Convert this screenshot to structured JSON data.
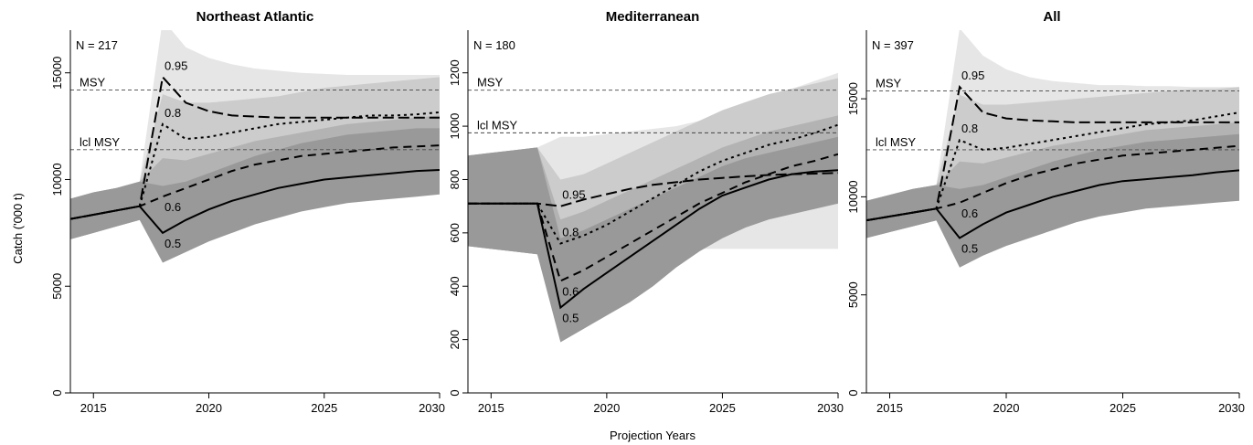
{
  "figure": {
    "shared_xlabel": "Projection Years",
    "ylabel": "Catch ('000 t)"
  },
  "chart_data": [
    {
      "type": "line",
      "title": "Northeast Atlantic",
      "n_label": "N = 217",
      "xlim": [
        2014,
        2030
      ],
      "ylim": [
        0,
        17000
      ],
      "xticks": [
        2015,
        2020,
        2025,
        2030
      ],
      "yticks": [
        0,
        5000,
        10000,
        15000
      ],
      "x": [
        2014,
        2015,
        2016,
        2017,
        2018,
        2019,
        2020,
        2021,
        2022,
        2023,
        2024,
        2025,
        2026,
        2027,
        2028,
        2029,
        2030
      ],
      "reference_lines": [
        {
          "label": "MSY",
          "value": 14200
        },
        {
          "label": "lcl MSY",
          "value": 11400
        }
      ],
      "bands": [
        {
          "level": "0.95",
          "color": "#e6e6e6",
          "lower": [
            7200,
            7500,
            7800,
            8100,
            8800,
            8900,
            9000,
            9100,
            9200,
            9300,
            9400,
            9500,
            9600,
            9700,
            9800,
            9900,
            10000
          ],
          "upper": [
            9100,
            9400,
            9600,
            9900,
            17500,
            16200,
            15700,
            15400,
            15200,
            15100,
            15000,
            14950,
            14900,
            14900,
            14900,
            14900,
            14900
          ]
        },
        {
          "level": "0.8",
          "color": "#cccccc",
          "lower": [
            7200,
            7500,
            7800,
            8100,
            8200,
            8400,
            8600,
            8800,
            9000,
            9200,
            9300,
            9400,
            9500,
            9600,
            9700,
            9800,
            9900
          ],
          "upper": [
            9100,
            9400,
            9600,
            9900,
            14000,
            13600,
            13600,
            13700,
            13800,
            13900,
            14100,
            14300,
            14400,
            14500,
            14600,
            14700,
            14800
          ]
        },
        {
          "level": "0.6",
          "color": "#b3b3b3",
          "lower": [
            7200,
            7500,
            7800,
            8100,
            7000,
            7300,
            7600,
            7900,
            8200,
            8400,
            8600,
            8800,
            9000,
            9100,
            9200,
            9300,
            9400
          ],
          "upper": [
            9100,
            9400,
            9600,
            9900,
            11000,
            10900,
            11200,
            11500,
            11800,
            12000,
            12200,
            12400,
            12600,
            12700,
            12800,
            12900,
            13000
          ]
        },
        {
          "level": "0.5",
          "color": "#999999",
          "lower": [
            7200,
            7500,
            7800,
            8100,
            6100,
            6600,
            7100,
            7500,
            7900,
            8200,
            8500,
            8700,
            8900,
            9000,
            9100,
            9200,
            9300
          ],
          "upper": [
            9100,
            9400,
            9600,
            9900,
            9700,
            9900,
            10300,
            10700,
            11100,
            11400,
            11700,
            11900,
            12100,
            12200,
            12300,
            12400,
            12400
          ]
        }
      ],
      "series": [
        {
          "name": "0.95",
          "dash": "12,5",
          "values": [
            8150,
            8350,
            8550,
            8750,
            14800,
            13600,
            13200,
            13000,
            12950,
            12900,
            12900,
            12900,
            12900,
            12900,
            12900,
            12900,
            12900
          ]
        },
        {
          "name": "0.8",
          "dash": "3,4",
          "values": [
            8150,
            8350,
            8550,
            8750,
            12600,
            11900,
            12000,
            12200,
            12400,
            12600,
            12700,
            12800,
            12900,
            13000,
            13000,
            13050,
            13150
          ]
        },
        {
          "name": "0.6",
          "dash": "9,6",
          "values": [
            8150,
            8350,
            8550,
            8750,
            9200,
            9600,
            10000,
            10400,
            10700,
            10900,
            11100,
            11200,
            11300,
            11400,
            11500,
            11550,
            11600
          ]
        },
        {
          "name": "0.5",
          "dash": "",
          "values": [
            8150,
            8350,
            8550,
            8750,
            7500,
            8100,
            8600,
            9000,
            9300,
            9600,
            9800,
            10000,
            10100,
            10200,
            10300,
            10400,
            10450
          ]
        }
      ]
    },
    {
      "type": "line",
      "title": "Mediterranean",
      "n_label": "N = 180",
      "xlim": [
        2014,
        2030
      ],
      "ylim": [
        0,
        1360
      ],
      "xticks": [
        2015,
        2020,
        2025,
        2030
      ],
      "yticks": [
        0,
        200,
        400,
        600,
        800,
        1000,
        1200
      ],
      "x": [
        2014,
        2015,
        2016,
        2017,
        2018,
        2019,
        2020,
        2021,
        2022,
        2023,
        2024,
        2025,
        2026,
        2027,
        2028,
        2029,
        2030
      ],
      "reference_lines": [
        {
          "label": "MSY",
          "value": 1135
        },
        {
          "label": "lcl MSY",
          "value": 975
        }
      ],
      "bands": [
        {
          "level": "0.95",
          "color": "#e6e6e6",
          "lower": [
            550,
            540,
            530,
            520,
            540,
            540,
            540,
            540,
            540,
            540,
            540,
            540,
            540,
            540,
            540,
            540,
            540
          ],
          "upper": [
            890,
            900,
            910,
            920,
            960,
            960,
            970,
            980,
            990,
            1000,
            1020,
            1050,
            1080,
            1110,
            1140,
            1170,
            1200
          ]
        },
        {
          "level": "0.8",
          "color": "#cccccc",
          "lower": [
            550,
            540,
            530,
            520,
            260,
            300,
            360,
            420,
            500,
            570,
            620,
            660,
            690,
            710,
            730,
            740,
            750
          ],
          "upper": [
            890,
            900,
            910,
            920,
            800,
            820,
            860,
            900,
            940,
            980,
            1020,
            1060,
            1090,
            1120,
            1140,
            1160,
            1180
          ]
        },
        {
          "level": "0.6",
          "color": "#b3b3b3",
          "lower": [
            550,
            540,
            530,
            520,
            240,
            280,
            330,
            390,
            450,
            510,
            560,
            600,
            640,
            670,
            690,
            710,
            720
          ],
          "upper": [
            890,
            900,
            910,
            920,
            650,
            680,
            720,
            760,
            800,
            840,
            880,
            920,
            950,
            980,
            1000,
            1020,
            1040
          ]
        },
        {
          "level": "0.5",
          "color": "#999999",
          "lower": [
            550,
            540,
            530,
            520,
            190,
            240,
            290,
            340,
            400,
            470,
            530,
            580,
            620,
            650,
            670,
            690,
            710
          ],
          "upper": [
            890,
            900,
            910,
            920,
            580,
            610,
            650,
            690,
            730,
            770,
            810,
            850,
            880,
            900,
            920,
            940,
            960
          ]
        }
      ],
      "series": [
        {
          "name": "0.95",
          "dash": "12,5",
          "values": [
            710,
            710,
            710,
            710,
            700,
            725,
            745,
            765,
            780,
            790,
            800,
            806,
            812,
            817,
            820,
            822,
            825
          ]
        },
        {
          "name": "0.8",
          "dash": "3,4",
          "values": [
            710,
            710,
            710,
            710,
            560,
            590,
            630,
            680,
            730,
            780,
            830,
            870,
            900,
            930,
            950,
            975,
            1005
          ]
        },
        {
          "name": "0.6",
          "dash": "9,6",
          "values": [
            710,
            710,
            710,
            710,
            420,
            460,
            510,
            560,
            610,
            660,
            710,
            750,
            790,
            820,
            850,
            870,
            895
          ]
        },
        {
          "name": "0.5",
          "dash": "",
          "values": [
            710,
            710,
            710,
            710,
            320,
            390,
            450,
            510,
            570,
            630,
            690,
            740,
            770,
            800,
            820,
            830,
            835
          ]
        }
      ]
    },
    {
      "type": "line",
      "title": "All",
      "n_label": "N = 397",
      "xlim": [
        2014,
        2030
      ],
      "ylim": [
        0,
        18500
      ],
      "xticks": [
        2015,
        2020,
        2025,
        2030
      ],
      "yticks": [
        0,
        5000,
        10000,
        15000
      ],
      "x": [
        2014,
        2015,
        2016,
        2017,
        2018,
        2019,
        2020,
        2021,
        2022,
        2023,
        2024,
        2025,
        2026,
        2027,
        2028,
        2029,
        2030
      ],
      "reference_lines": [
        {
          "label": "MSY",
          "value": 15400
        },
        {
          "label": "lcl MSY",
          "value": 12400
        }
      ],
      "bands": [
        {
          "level": "0.95",
          "color": "#e6e6e6",
          "lower": [
            7900,
            8200,
            8500,
            8800,
            9500,
            9600,
            9700,
            9800,
            9900,
            10000,
            10100,
            10200,
            10300,
            10400,
            10500,
            10600,
            10700
          ],
          "upper": [
            9800,
            10100,
            10400,
            10600,
            18600,
            17200,
            16500,
            16100,
            15900,
            15800,
            15700,
            15700,
            15650,
            15650,
            15600,
            15600,
            15600
          ]
        },
        {
          "level": "0.8",
          "color": "#cccccc",
          "lower": [
            7900,
            8200,
            8500,
            8800,
            8900,
            9100,
            9300,
            9500,
            9700,
            9900,
            10000,
            10100,
            10200,
            10300,
            10400,
            10500,
            10600
          ],
          "upper": [
            9800,
            10100,
            10400,
            10600,
            15200,
            14700,
            14700,
            14800,
            14900,
            15000,
            15100,
            15200,
            15300,
            15400,
            15500,
            15500,
            15600
          ]
        },
        {
          "level": "0.6",
          "color": "#b3b3b3",
          "lower": [
            7900,
            8200,
            8500,
            8800,
            7500,
            7800,
            8100,
            8400,
            8700,
            9000,
            9200,
            9400,
            9600,
            9700,
            9800,
            9900,
            10000
          ],
          "upper": [
            9800,
            10100,
            10400,
            10600,
            11800,
            11700,
            12000,
            12300,
            12600,
            12800,
            13000,
            13200,
            13400,
            13500,
            13600,
            13700,
            13800
          ]
        },
        {
          "level": "0.5",
          "color": "#999999",
          "lower": [
            7900,
            8200,
            8500,
            8800,
            6400,
            7000,
            7500,
            7900,
            8300,
            8700,
            9000,
            9200,
            9400,
            9500,
            9600,
            9700,
            9800
          ],
          "upper": [
            9800,
            10100,
            10400,
            10600,
            10400,
            10600,
            11000,
            11400,
            11800,
            12100,
            12400,
            12600,
            12800,
            12900,
            13000,
            13100,
            13200
          ]
        }
      ],
      "series": [
        {
          "name": "0.95",
          "dash": "12,5",
          "values": [
            8800,
            9000,
            9200,
            9400,
            15600,
            14300,
            14000,
            13900,
            13850,
            13800,
            13800,
            13800,
            13800,
            13800,
            13800,
            13800,
            13800
          ]
        },
        {
          "name": "0.8",
          "dash": "3,4",
          "values": [
            8800,
            9000,
            9200,
            9400,
            12900,
            12400,
            12500,
            12700,
            12900,
            13100,
            13300,
            13500,
            13700,
            13800,
            13900,
            14100,
            14300
          ]
        },
        {
          "name": "0.6",
          "dash": "9,6",
          "values": [
            8800,
            9000,
            9200,
            9400,
            9700,
            10200,
            10700,
            11100,
            11400,
            11700,
            11900,
            12100,
            12200,
            12300,
            12400,
            12500,
            12600
          ]
        },
        {
          "name": "0.5",
          "dash": "",
          "values": [
            8800,
            9000,
            9200,
            9400,
            7900,
            8600,
            9200,
            9600,
            10000,
            10300,
            10600,
            10800,
            10900,
            11000,
            11100,
            11250,
            11350
          ]
        }
      ]
    }
  ]
}
